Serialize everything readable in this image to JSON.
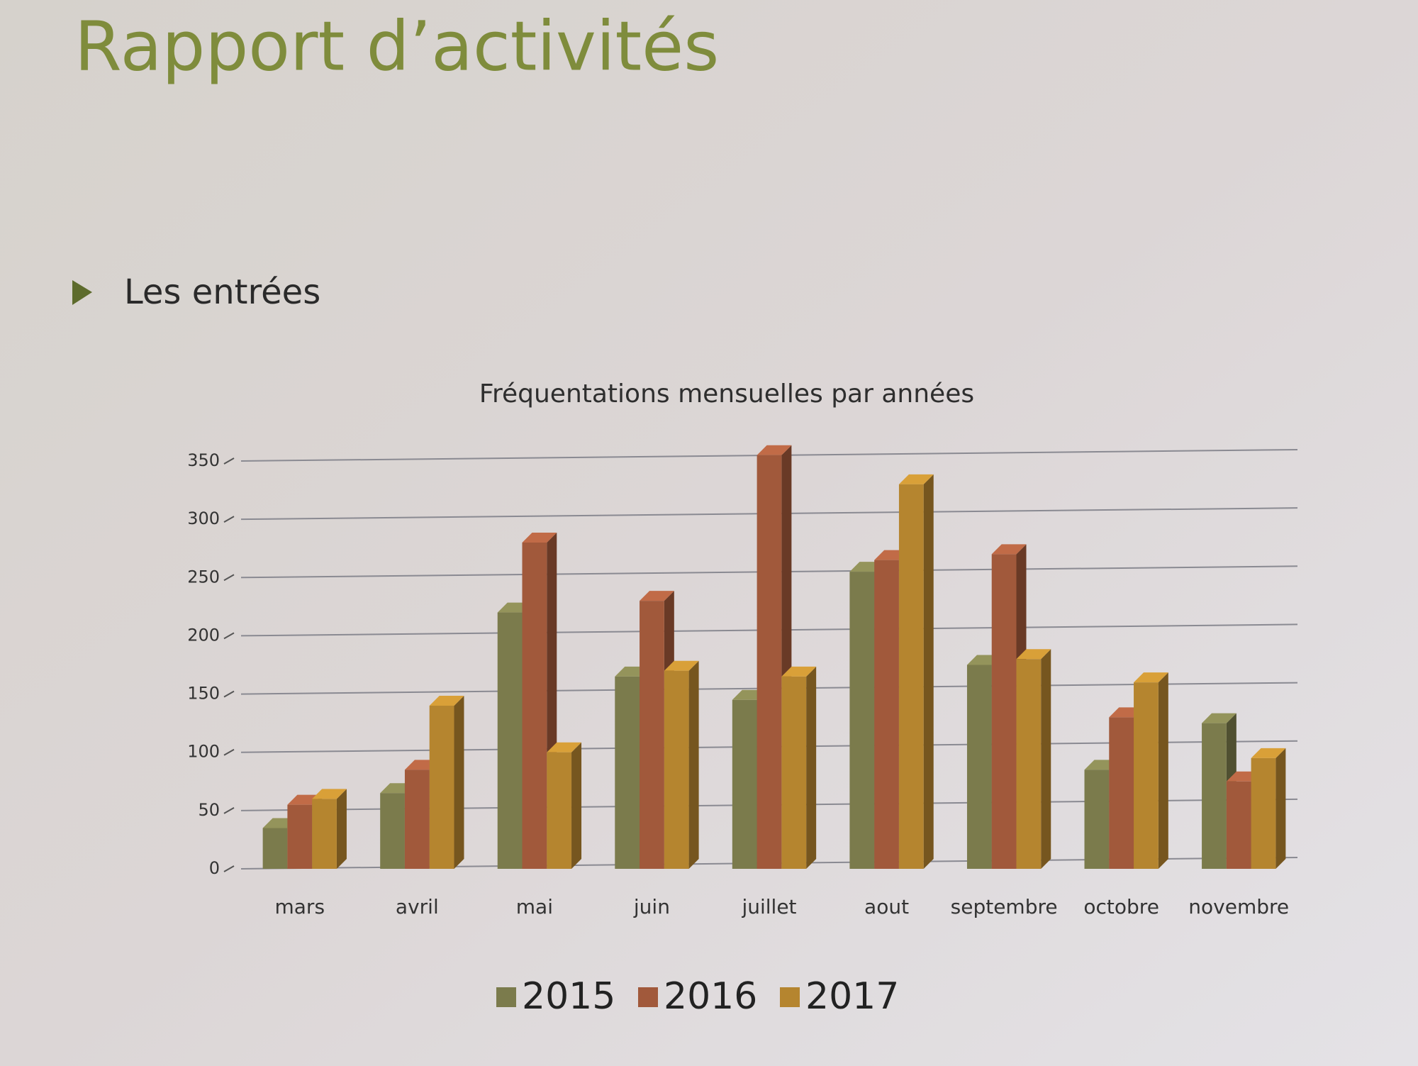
{
  "slide": {
    "title": "Rapport d’activités",
    "bullet": "Les entrées"
  },
  "chart_data": {
    "type": "bar3d",
    "title": "Fréquentations mensuelles par années",
    "categories": [
      "mars",
      "avril",
      "mai",
      "juin",
      "juillet",
      "aout",
      "septembre",
      "octobre",
      "novembre"
    ],
    "series": [
      {
        "name": "2015",
        "color": "#7b7b4c",
        "values": [
          35,
          65,
          220,
          165,
          145,
          255,
          175,
          85,
          125
        ]
      },
      {
        "name": "2016",
        "color": "#a1593b",
        "values": [
          55,
          85,
          280,
          230,
          355,
          265,
          270,
          130,
          75
        ]
      },
      {
        "name": "2017",
        "color": "#b5852f",
        "values": [
          60,
          140,
          100,
          170,
          165,
          330,
          180,
          160,
          95
        ]
      }
    ],
    "ylim": [
      0,
      350
    ],
    "yticks": [
      0,
      50,
      100,
      150,
      200,
      250,
      300,
      350
    ],
    "grid": true,
    "legend": "bottom"
  }
}
